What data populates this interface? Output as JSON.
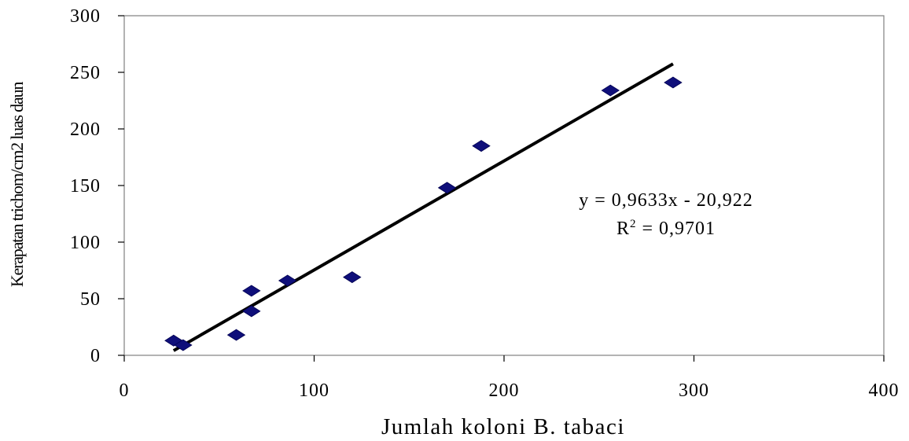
{
  "chart_data": {
    "type": "scatter",
    "title": "",
    "xlabel": "Jumlah koloni B. tabaci",
    "ylabel": "Kerapatan trichom/cm2 luas daun",
    "xlim": [
      0,
      400
    ],
    "ylim": [
      0,
      300
    ],
    "x_ticks": [
      0,
      100,
      200,
      300,
      400
    ],
    "y_ticks": [
      0,
      50,
      100,
      150,
      200,
      250,
      300
    ],
    "x_tick_labels": [
      "0",
      "100",
      "200",
      "300",
      "400"
    ],
    "y_tick_labels": [
      "0",
      "50",
      "100",
      "150",
      "200",
      "250",
      "300"
    ],
    "grid": false,
    "legend": "none",
    "marker": "diamond",
    "marker_color": "#0f0f7a",
    "line_color": "#000000",
    "series": [
      {
        "points": [
          {
            "x": 26,
            "y": 13
          },
          {
            "x": 31,
            "y": 9
          },
          {
            "x": 59,
            "y": 18
          },
          {
            "x": 67,
            "y": 39
          },
          {
            "x": 67,
            "y": 57
          },
          {
            "x": 86,
            "y": 66
          },
          {
            "x": 120,
            "y": 69
          },
          {
            "x": 170,
            "y": 148
          },
          {
            "x": 188,
            "y": 185
          },
          {
            "x": 256,
            "y": 234
          },
          {
            "x": 289,
            "y": 241
          }
        ]
      }
    ],
    "trendline": {
      "slope": 0.9633,
      "intercept": -20.922,
      "x_start": 26,
      "x_end": 289
    },
    "annotations": {
      "equation": "y = 0,9633x - 20,922",
      "r2_prefix": "R",
      "r2_sup": "2",
      "r2_value": " = 0,9701"
    }
  }
}
